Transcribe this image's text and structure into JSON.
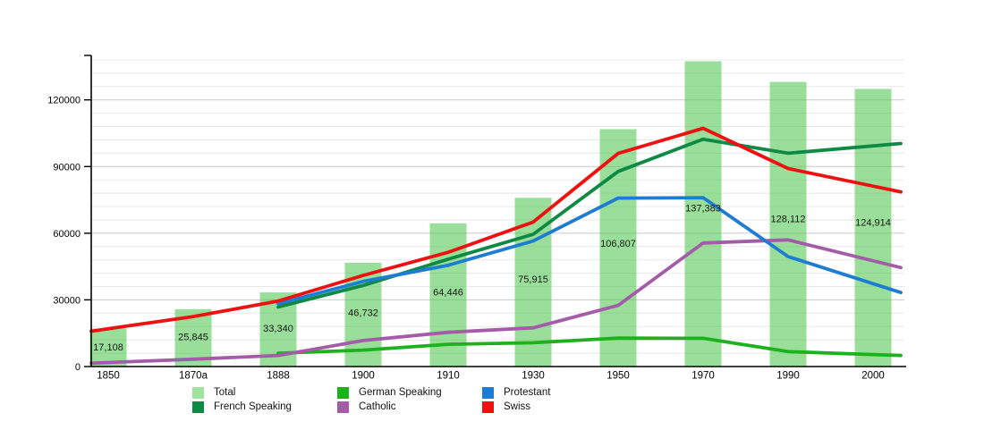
{
  "chart_data": {
    "type": "bar+line",
    "title": "",
    "categories": [
      "1850",
      "1870a",
      "1888",
      "1900",
      "1910",
      "1930",
      "1950",
      "1970",
      "1990",
      "2000"
    ],
    "bar_series": {
      "name": "Total",
      "color": "#9fe39f",
      "values": [
        17108,
        25845,
        33340,
        46732,
        64446,
        75915,
        106807,
        137383,
        128112,
        124914
      ],
      "labels": [
        "17,108",
        "25,845",
        "33,340",
        "46,732",
        "64,446",
        "75,915",
        "106,807",
        "137,383",
        "128,112",
        "124,914"
      ]
    },
    "line_series": [
      {
        "name": "French Speaking",
        "color": "#0f8a45",
        "values": [
          null,
          null,
          26800,
          36500,
          48300,
          59500,
          87800,
          102300,
          96000,
          99300
        ]
      },
      {
        "name": "German Speaking",
        "color": "#1db21d",
        "values": [
          null,
          null,
          6000,
          7400,
          10000,
          10700,
          12800,
          12700,
          6700,
          5400
        ]
      },
      {
        "name": "Catholic",
        "color": "#a55ca8",
        "values": [
          1800,
          3300,
          5000,
          11700,
          15400,
          17400,
          27500,
          55600,
          57000,
          47600
        ]
      },
      {
        "name": "Protestant",
        "color": "#1d7dd3",
        "values": [
          null,
          null,
          28300,
          38300,
          45600,
          56500,
          75800,
          76000,
          49500,
          37300
        ]
      },
      {
        "name": "Swiss",
        "color": "#ee1111",
        "values": [
          17000,
          22500,
          29500,
          41000,
          51400,
          65000,
          95900,
          107200,
          89100,
          81200
        ]
      }
    ],
    "ylim": [
      0,
      140000
    ],
    "yticks": [
      0,
      30000,
      60000,
      90000,
      120000
    ],
    "ytick_labels": [
      "0",
      "30000",
      "60000",
      "90000",
      "120000"
    ],
    "grid": {
      "minor_step": 6000,
      "major_step": 30000,
      "horizontal_only": true
    },
    "legend_position": "bottom"
  },
  "legend": {
    "items": [
      {
        "label": "Total",
        "color": "#9fe39f"
      },
      {
        "label": "German Speaking",
        "color": "#1db21d"
      },
      {
        "label": "Protestant",
        "color": "#1d7dd3"
      },
      {
        "label": "French Speaking",
        "color": "#0f8a45"
      },
      {
        "label": "Catholic",
        "color": "#a55ca8"
      },
      {
        "label": "Swiss",
        "color": "#ee1111"
      }
    ]
  }
}
